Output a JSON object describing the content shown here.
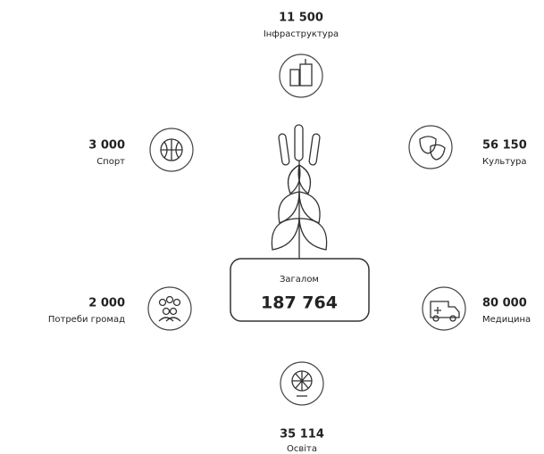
{
  "total": {
    "label": "Загалом",
    "value": "187 764"
  },
  "items": [
    {
      "value": "11 500",
      "label": "Інфраструктура"
    },
    {
      "value": "3 000",
      "label": "Спорт"
    },
    {
      "value": "56 150",
      "label": "Культура"
    },
    {
      "value": "2 000",
      "label": "Потреби громад"
    },
    {
      "value": "80 000",
      "label": "Медицина"
    },
    {
      "value": "35 114",
      "label": "Освіта"
    }
  ]
}
